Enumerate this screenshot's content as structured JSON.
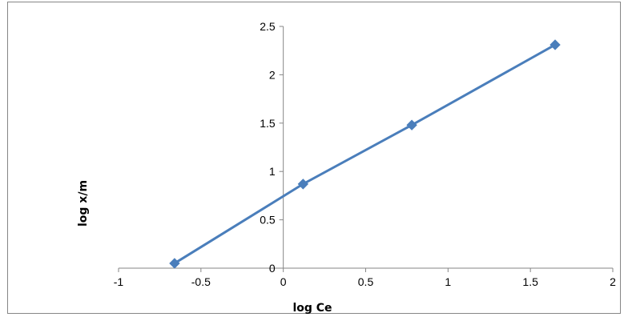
{
  "chart_data": {
    "type": "scatter",
    "title": "",
    "xlabel": "log Ce",
    "ylabel": "log x/m",
    "xlim": [
      -1,
      2
    ],
    "ylim": [
      0,
      2.5
    ],
    "x_ticks": [
      "-1",
      "-0.5",
      "0",
      "0.5",
      "1",
      "1.5",
      "2"
    ],
    "y_ticks": [
      "0",
      "0.5",
      "1",
      "1.5",
      "2",
      "2.5"
    ],
    "grid": false,
    "legend": "none",
    "marker": "diamond",
    "lines": "straight lines connecting points",
    "series": [
      {
        "x": [
          -0.66,
          0.12,
          0.78,
          1.65
        ],
        "y": [
          0.05,
          0.87,
          1.48,
          2.31
        ],
        "color": "#4a7ebb"
      }
    ]
  }
}
